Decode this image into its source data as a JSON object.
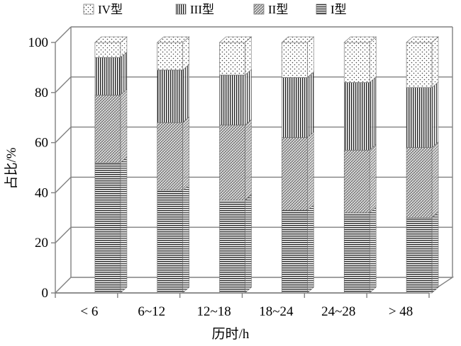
{
  "chart_data": {
    "type": "bar",
    "stacked": true,
    "three_d": true,
    "xlabel": "历时/h",
    "ylabel": "占比/%",
    "ylim": [
      0,
      100
    ],
    "yticks": [
      0,
      20,
      40,
      60,
      80,
      100
    ],
    "grid": true,
    "legend_position": "top",
    "categories": [
      "< 6",
      "6~12",
      "12~18",
      "18~24",
      "24~28",
      "> 48"
    ],
    "series": [
      {
        "name": "I型",
        "pattern": "horizontal-lines",
        "values": [
          52,
          41,
          37,
          33,
          32,
          30
        ]
      },
      {
        "name": "II型",
        "pattern": "diagonal-hatch",
        "values": [
          27,
          27,
          30,
          29,
          25,
          28
        ]
      },
      {
        "name": "III型",
        "pattern": "vertical-lines",
        "values": [
          15,
          21,
          20,
          24,
          27,
          24
        ]
      },
      {
        "name": "IV型",
        "pattern": "dots",
        "values": [
          6,
          11,
          13,
          14,
          16,
          18
        ]
      }
    ],
    "legend_order": [
      "IV型",
      "III型",
      "II型",
      "I型"
    ],
    "colors": {
      "frame": "#808080",
      "ink": "#000000",
      "background": "#ffffff"
    }
  }
}
